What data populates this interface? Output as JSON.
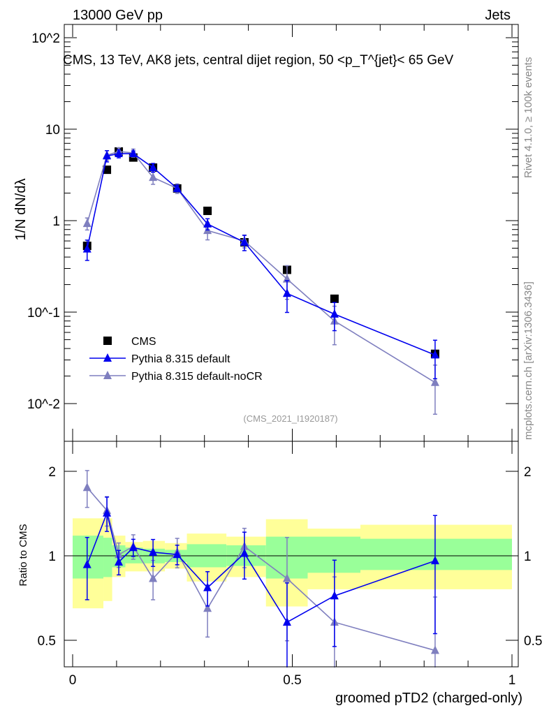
{
  "header": {
    "left": "13000 GeV pp",
    "right": "Jets"
  },
  "side": {
    "rivet": "Rivet 4.1.0, ≥ 100k events",
    "mcplots": "mcplots.cern.ch [arXiv:1306.3436]"
  },
  "chart_data": [
    {
      "type": "scatter",
      "title": "CMS, 13 TeV, AK8 jets, central dijet region, 50 <p_T^{jet}< 65 GeV",
      "analysis": "(CMS_2021_I1920187)",
      "ylabel": "1/N dN/dλ",
      "yscale": "log",
      "ylim": [
        0.0039,
        139
      ],
      "xlim": [
        -0.02,
        1.02
      ],
      "ytick_labels": [
        "10^-2",
        "10^-1",
        "1",
        "10",
        "10^2"
      ],
      "yticks": [
        0.01,
        0.1,
        1,
        10,
        100
      ],
      "x": [
        0.033,
        0.078,
        0.105,
        0.138,
        0.183,
        0.238,
        0.307,
        0.391,
        0.488,
        0.596,
        0.825
      ],
      "series": [
        {
          "name": "CMS",
          "marker": "square",
          "color": "#000000",
          "values": [
            0.53,
            3.6,
            5.7,
            4.9,
            3.8,
            2.25,
            1.28,
            0.58,
            0.29,
            0.14,
            0.035
          ]
        },
        {
          "name": "Pythia 8.315 default",
          "marker": "triangle",
          "color": "#0000ee",
          "values": [
            0.49,
            5.1,
            5.4,
            5.4,
            3.8,
            2.25,
            0.92,
            0.58,
            0.16,
            0.095,
            0.034
          ],
          "relerr": [
            0.25,
            0.14,
            0.1,
            0.07,
            0.11,
            0.08,
            0.14,
            0.19,
            0.38,
            0.34,
            0.45
          ]
        },
        {
          "name": "Pythia 8.315 default-noCR",
          "marker": "triangle",
          "color": "#7f7fbf",
          "values": [
            0.93,
            5.2,
            5.7,
            5.5,
            2.97,
            2.25,
            0.78,
            0.6,
            0.23,
            0.08,
            0.017
          ],
          "relerr": [
            0.15,
            0.12,
            0.1,
            0.1,
            0.16,
            0.12,
            0.21,
            0.16,
            0.4,
            0.45,
            0.55
          ]
        }
      ],
      "legend": "lower-left"
    },
    {
      "type": "scatter",
      "ylabel": "Ratio to CMS",
      "xlabel": "groomed pTD2 (charged-only)",
      "yscale": "log",
      "ylim": [
        0.4,
        2.56
      ],
      "xlim": [
        -0.02,
        1.02
      ],
      "yticks": [
        0.5,
        1,
        2
      ],
      "ytick_labels": [
        "0.5",
        "1",
        "2"
      ],
      "xticks": [
        0,
        0.5,
        1
      ],
      "xtick_labels": [
        "0",
        "0.5",
        "1"
      ],
      "bin_edges": [
        0,
        0.07,
        0.09,
        0.12,
        0.16,
        0.21,
        0.26,
        0.35,
        0.44,
        0.535,
        0.655,
        1.0
      ],
      "band_total": [
        [
          0.65,
          1.36
        ],
        [
          0.69,
          1.36
        ],
        [
          0.84,
          1.18
        ],
        [
          0.88,
          1.12
        ],
        [
          0.88,
          1.13
        ],
        [
          0.9,
          1.11
        ],
        [
          0.81,
          1.2
        ],
        [
          0.84,
          1.17
        ],
        [
          0.66,
          1.35
        ],
        [
          0.76,
          1.25
        ],
        [
          0.76,
          1.29
        ]
      ],
      "band_stat": [
        [
          0.83,
          1.18
        ],
        [
          0.84,
          1.16
        ],
        [
          0.91,
          1.09
        ],
        [
          0.94,
          1.07
        ],
        [
          0.94,
          1.06
        ],
        [
          0.95,
          1.05
        ],
        [
          0.91,
          1.1
        ],
        [
          0.92,
          1.09
        ],
        [
          0.83,
          1.17
        ],
        [
          0.87,
          1.17
        ],
        [
          0.89,
          1.15
        ]
      ],
      "series": [
        {
          "name": "Pythia 8.315 default",
          "color": "#0000ee",
          "values": [
            0.93,
            1.42,
            0.95,
            1.07,
            1.03,
            1.01,
            0.77,
            1.02,
            0.58,
            0.72,
            0.96
          ],
          "relerr": [
            0.25,
            0.14,
            0.1,
            0.07,
            0.11,
            0.08,
            0.14,
            0.19,
            0.38,
            0.34,
            0.45
          ]
        },
        {
          "name": "Pythia 8.315 default-noCR",
          "color": "#7f7fbf",
          "values": [
            1.75,
            1.45,
            1.01,
            1.08,
            0.83,
            1.03,
            0.65,
            1.08,
            0.83,
            0.58,
            0.46
          ],
          "relerr": [
            0.15,
            0.12,
            0.1,
            0.1,
            0.16,
            0.12,
            0.21,
            0.16,
            0.4,
            0.45,
            0.55
          ]
        }
      ]
    }
  ]
}
